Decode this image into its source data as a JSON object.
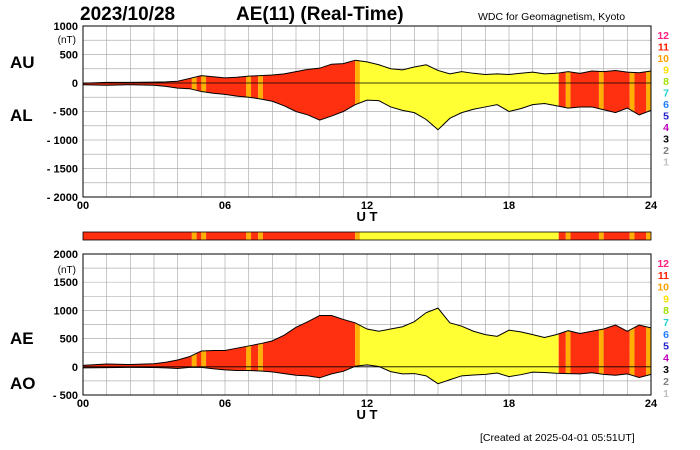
{
  "header": {
    "date": "2023/10/28",
    "title": "AE(11) (Real-Time)",
    "source": "WDC for Geomagnetism, Kyoto"
  },
  "footer": {
    "created": "[Created at 2025-04-01 05:51UT]"
  },
  "colors": {
    "fill_primary": "#ff3010",
    "fill_secondary": "#ffff33",
    "fill_tertiary": "#ffb000",
    "grid": "#b0b0b0"
  },
  "station_legend": [
    {
      "label": "12",
      "color": "#ff2080"
    },
    {
      "label": "11",
      "color": "#ff2000"
    },
    {
      "label": "10",
      "color": "#ffa000"
    },
    {
      "label": "9",
      "color": "#ffe000"
    },
    {
      "label": "8",
      "color": "#a0e000"
    },
    {
      "label": "7",
      "color": "#20d0d0"
    },
    {
      "label": "6",
      "color": "#2080ff"
    },
    {
      "label": "5",
      "color": "#2020d0"
    },
    {
      "label": "4",
      "color": "#c000c0"
    },
    {
      "label": "3",
      "color": "#000000"
    },
    {
      "label": "2",
      "color": "#808080"
    },
    {
      "label": "1",
      "color": "#c0c0c0"
    }
  ],
  "chart_data": [
    {
      "type": "area",
      "panel": "AU/AL",
      "ylabel_top": "AU",
      "ylabel_bottom": "AL",
      "unit": "(nT)",
      "xlabel": "U T",
      "xlim": [
        0,
        24
      ],
      "ylim": [
        -2000,
        1000
      ],
      "xticks": [
        0,
        6,
        12,
        18,
        24
      ],
      "xtick_labels": [
        "00",
        "06",
        "12",
        "18",
        "24"
      ],
      "yticks": [
        1000,
        500,
        0,
        -500,
        -1000,
        -1500,
        -2000
      ],
      "ytick_labels": [
        "1000",
        "500",
        "0",
        "- 500",
        "- 1000",
        "- 1500",
        "- 2000"
      ],
      "grid": true,
      "x": [
        0,
        1,
        2,
        3,
        3.5,
        4,
        4.5,
        5,
        5.5,
        6,
        6.5,
        7,
        7.5,
        8,
        8.5,
        9,
        9.5,
        10,
        10.5,
        11,
        11.5,
        12,
        12.5,
        13,
        13.5,
        14,
        14.5,
        15,
        15.5,
        16,
        16.5,
        17,
        17.5,
        18,
        18.5,
        19,
        19.5,
        20,
        20.5,
        21,
        21.5,
        22,
        22.5,
        23,
        23.5,
        24
      ],
      "series": [
        {
          "name": "AU",
          "values": [
            -5,
            10,
            10,
            15,
            20,
            30,
            80,
            130,
            110,
            90,
            100,
            120,
            130,
            140,
            160,
            200,
            240,
            260,
            330,
            340,
            400,
            370,
            320,
            250,
            230,
            280,
            320,
            220,
            160,
            200,
            170,
            150,
            160,
            150,
            170,
            190,
            160,
            170,
            200,
            170,
            210,
            200,
            220,
            190,
            180,
            210
          ]
        },
        {
          "name": "AL",
          "values": [
            -30,
            -40,
            -30,
            -40,
            -60,
            -90,
            -100,
            -150,
            -180,
            -200,
            -230,
            -250,
            -280,
            -320,
            -400,
            -500,
            -560,
            -650,
            -580,
            -500,
            -380,
            -300,
            -310,
            -420,
            -480,
            -520,
            -640,
            -820,
            -620,
            -520,
            -460,
            -420,
            -380,
            -500,
            -450,
            -380,
            -360,
            -400,
            -440,
            -420,
            -420,
            -470,
            -520,
            -440,
            -560,
            -480
          ]
        }
      ]
    },
    {
      "type": "area",
      "panel": "AE/AO",
      "ylabel_top": "AE",
      "ylabel_bottom": "AO",
      "unit": "(nT)",
      "xlabel": "U T",
      "xlim": [
        0,
        24
      ],
      "ylim": [
        -500,
        2000
      ],
      "xticks": [
        0,
        6,
        12,
        18,
        24
      ],
      "xtick_labels": [
        "00",
        "06",
        "12",
        "18",
        "24"
      ],
      "yticks": [
        2000,
        1500,
        1000,
        500,
        0,
        -500
      ],
      "ytick_labels": [
        "2000",
        "1500",
        "1000",
        "500",
        "0",
        "- 500"
      ],
      "grid": true,
      "x": [
        0,
        1,
        2,
        3,
        3.5,
        4,
        4.5,
        5,
        5.5,
        6,
        6.5,
        7,
        7.5,
        8,
        8.5,
        9,
        9.5,
        10,
        10.5,
        11,
        11.5,
        12,
        12.5,
        13,
        13.5,
        14,
        14.5,
        15,
        15.5,
        16,
        16.5,
        17,
        17.5,
        18,
        18.5,
        19,
        19.5,
        20,
        20.5,
        21,
        21.5,
        22,
        22.5,
        23,
        23.5,
        24
      ],
      "series": [
        {
          "name": "AE",
          "values": [
            25,
            50,
            40,
            55,
            80,
            120,
            180,
            280,
            290,
            290,
            330,
            370,
            410,
            460,
            560,
            700,
            800,
            910,
            910,
            840,
            780,
            670,
            630,
            670,
            710,
            800,
            960,
            1040,
            780,
            720,
            630,
            570,
            540,
            650,
            620,
            570,
            520,
            570,
            640,
            590,
            630,
            670,
            740,
            630,
            740,
            690
          ]
        },
        {
          "name": "AO",
          "values": [
            -18,
            -15,
            -10,
            -13,
            -20,
            -30,
            -10,
            -10,
            -35,
            -55,
            -65,
            -65,
            -75,
            -90,
            -120,
            -150,
            -160,
            -195,
            -125,
            -80,
            10,
            35,
            5,
            -85,
            -125,
            -120,
            -160,
            -300,
            -230,
            -160,
            -145,
            -135,
            -110,
            -175,
            -140,
            -95,
            -100,
            -115,
            -120,
            -125,
            -105,
            -135,
            -150,
            -125,
            -190,
            -135
          ]
        }
      ]
    }
  ]
}
